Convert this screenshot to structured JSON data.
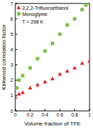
{
  "chart_data": {
    "type": "scatter",
    "x_label": "Volume fraction of TFE",
    "y_label": "Kirkwood correlation factor",
    "annotation": "T = 298 K",
    "xlim": [
      0,
      1
    ],
    "ylim": [
      0,
      7
    ],
    "xticks": [
      0,
      0.2,
      0.4,
      0.6,
      0.8,
      1
    ],
    "yticks": [
      0,
      1,
      2,
      3,
      4,
      5,
      6,
      7
    ],
    "legend": "top-left",
    "series": [
      {
        "name": "2,2,2-Trifluoroethanol",
        "color": "#e02020",
        "marker": "triangle",
        "x": [
          0,
          0.05,
          0.1,
          0.2,
          0.3,
          0.4,
          0.5,
          0.6,
          0.7,
          0.8,
          0.9,
          1
        ],
        "values": [
          0.9,
          1.1,
          1.2,
          1.5,
          1.7,
          1.9,
          2.1,
          2.4,
          2.6,
          2.8,
          3.1,
          3.25
        ]
      },
      {
        "name": "Monoglyme",
        "color": "#7ac143",
        "marker": "square",
        "x": [
          0.02,
          0.05,
          0.1,
          0.2,
          0.3,
          0.4,
          0.5,
          0.6,
          0.7,
          0.8,
          0.9,
          0.95
        ],
        "values": [
          1.5,
          2.0,
          2.3,
          2.8,
          3.4,
          3.9,
          4.4,
          5.0,
          5.6,
          6.0,
          6.6,
          6.9
        ]
      }
    ]
  }
}
